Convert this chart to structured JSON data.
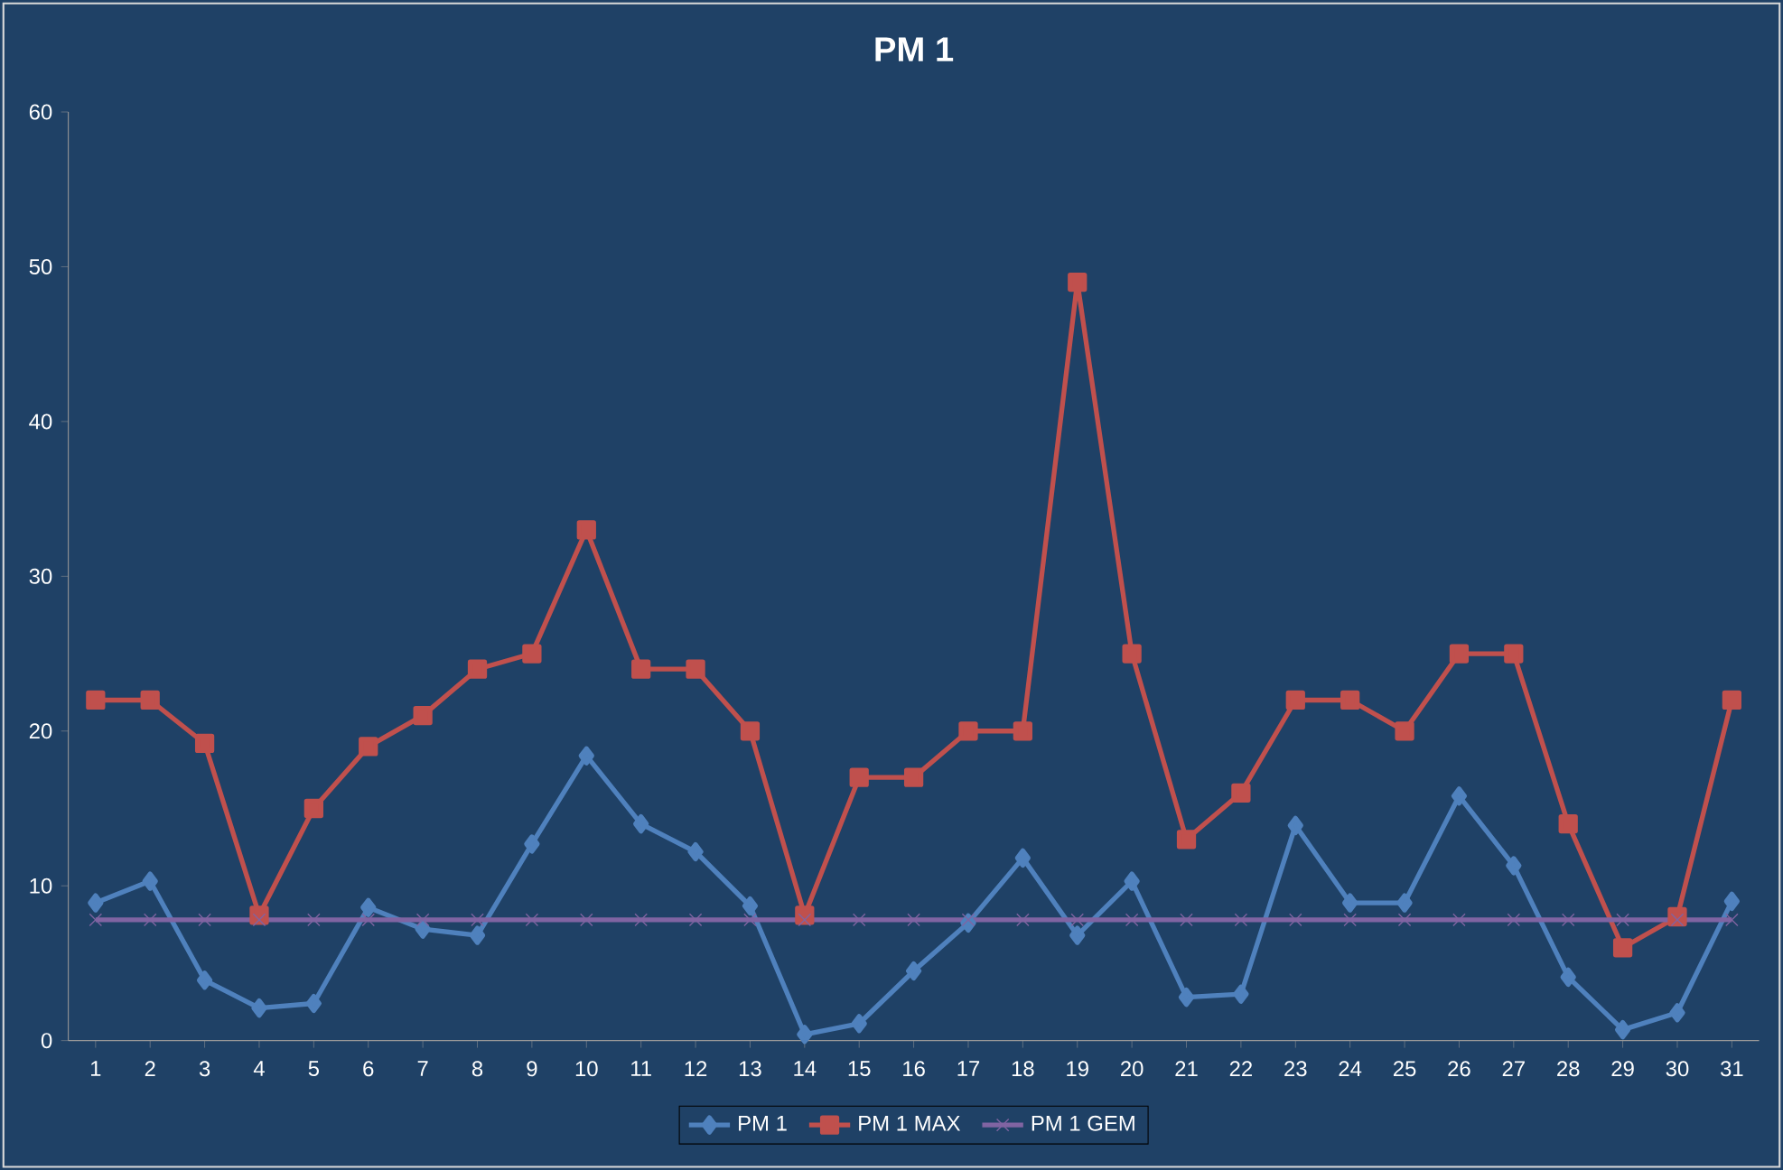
{
  "chart_data": {
    "type": "line",
    "title": "PM 1",
    "categories": [
      "1",
      "2",
      "3",
      "4",
      "5",
      "6",
      "7",
      "8",
      "9",
      "10",
      "11",
      "12",
      "13",
      "14",
      "15",
      "16",
      "17",
      "18",
      "19",
      "20",
      "21",
      "22",
      "23",
      "24",
      "25",
      "26",
      "27",
      "28",
      "29",
      "30",
      "31"
    ],
    "series": [
      {
        "name": "PM 1",
        "color": "#4f81bd",
        "marker": "diamond",
        "values": [
          8.9,
          10.3,
          3.9,
          2.1,
          2.4,
          8.6,
          7.2,
          6.8,
          12.7,
          18.4,
          14.0,
          12.2,
          8.7,
          0.4,
          1.1,
          4.5,
          7.6,
          11.8,
          6.8,
          10.3,
          2.8,
          3.0,
          13.9,
          8.9,
          8.9,
          15.8,
          11.3,
          4.1,
          0.7,
          1.8,
          9.0
        ]
      },
      {
        "name": "PM 1 MAX",
        "color": "#c0504d",
        "marker": "square",
        "values": [
          22,
          22,
          19.2,
          8.1,
          15,
          19,
          21,
          24,
          25,
          33,
          24,
          24,
          20,
          8.1,
          17,
          17,
          20,
          20,
          49,
          25,
          13,
          16,
          22,
          22,
          20,
          25,
          25,
          14,
          6,
          8,
          22
        ]
      },
      {
        "name": "PM 1 GEM",
        "color": "#8064a2",
        "marker": "cross",
        "values": [
          7.8,
          7.8,
          7.8,
          7.8,
          7.8,
          7.8,
          7.8,
          7.8,
          7.8,
          7.8,
          7.8,
          7.8,
          7.8,
          7.8,
          7.8,
          7.8,
          7.8,
          7.8,
          7.8,
          7.8,
          7.8,
          7.8,
          7.8,
          7.8,
          7.8,
          7.8,
          7.8,
          7.8,
          7.8,
          7.8,
          7.8
        ]
      }
    ],
    "ylim": [
      0,
      60
    ],
    "yticks": [
      0,
      10,
      20,
      30,
      40,
      50,
      60
    ],
    "grid": false,
    "legend": "bottom",
    "line_style": "solid"
  }
}
